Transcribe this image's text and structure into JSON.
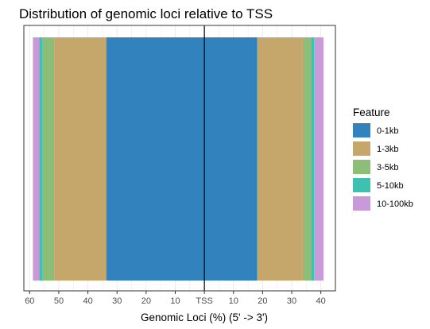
{
  "chart_data": {
    "type": "bar",
    "orientation": "horizontal-diverging",
    "title": "Distribution of genomic loci relative to TSS",
    "xlabel": "Genomic Loci (%) (5' -> 3')",
    "ylabel": "",
    "xlim": [
      -62,
      45
    ],
    "x_ticks": [
      {
        "value": -60,
        "label": "60"
      },
      {
        "value": -50,
        "label": "50"
      },
      {
        "value": -40,
        "label": "40"
      },
      {
        "value": -30,
        "label": "30"
      },
      {
        "value": -20,
        "label": "20"
      },
      {
        "value": -10,
        "label": "10"
      },
      {
        "value": 0,
        "label": "TSS"
      },
      {
        "value": 10,
        "label": "10"
      },
      {
        "value": 20,
        "label": "20"
      },
      {
        "value": 30,
        "label": "30"
      },
      {
        "value": 40,
        "label": "40"
      }
    ],
    "center_line": {
      "value": 0
    },
    "grid": true,
    "legend": {
      "title": "Feature",
      "position": "right",
      "entries": [
        {
          "label": "0-1kb",
          "color": "#3182bd"
        },
        {
          "label": "1-3kb",
          "color": "#c6a76b"
        },
        {
          "label": "3-5kb",
          "color": "#8cbe7a"
        },
        {
          "label": "5-10kb",
          "color": "#3ec1b0"
        },
        {
          "label": "10-100kb",
          "color": "#c99ad9"
        }
      ]
    },
    "series": [
      {
        "category": "10-100kb",
        "direction": "upstream",
        "from": -58.9,
        "to": -56.7,
        "color": "#c99ad9"
      },
      {
        "category": "5-10kb",
        "direction": "upstream",
        "from": -56.7,
        "to": -55.5,
        "color": "#3ec1b0"
      },
      {
        "category": "3-5kb",
        "direction": "upstream",
        "from": -55.5,
        "to": -51.6,
        "color": "#8cbe7a"
      },
      {
        "category": "1-3kb",
        "direction": "upstream",
        "from": -51.6,
        "to": -33.7,
        "color": "#c6a76b"
      },
      {
        "category": "0-1kb",
        "direction": "upstream",
        "from": -33.7,
        "to": 0,
        "color": "#3182bd"
      },
      {
        "category": "0-1kb",
        "direction": "downstream",
        "from": 0,
        "to": 18.1,
        "color": "#3182bd"
      },
      {
        "category": "1-3kb",
        "direction": "downstream",
        "from": 18.1,
        "to": 33.8,
        "color": "#c6a76b"
      },
      {
        "category": "3-5kb",
        "direction": "downstream",
        "from": 33.8,
        "to": 36.7,
        "color": "#8cbe7a"
      },
      {
        "category": "5-10kb",
        "direction": "downstream",
        "from": 36.7,
        "to": 37.7,
        "color": "#3ec1b0"
      },
      {
        "category": "10-100kb",
        "direction": "downstream",
        "from": 37.7,
        "to": 40.9,
        "color": "#c99ad9"
      }
    ]
  }
}
